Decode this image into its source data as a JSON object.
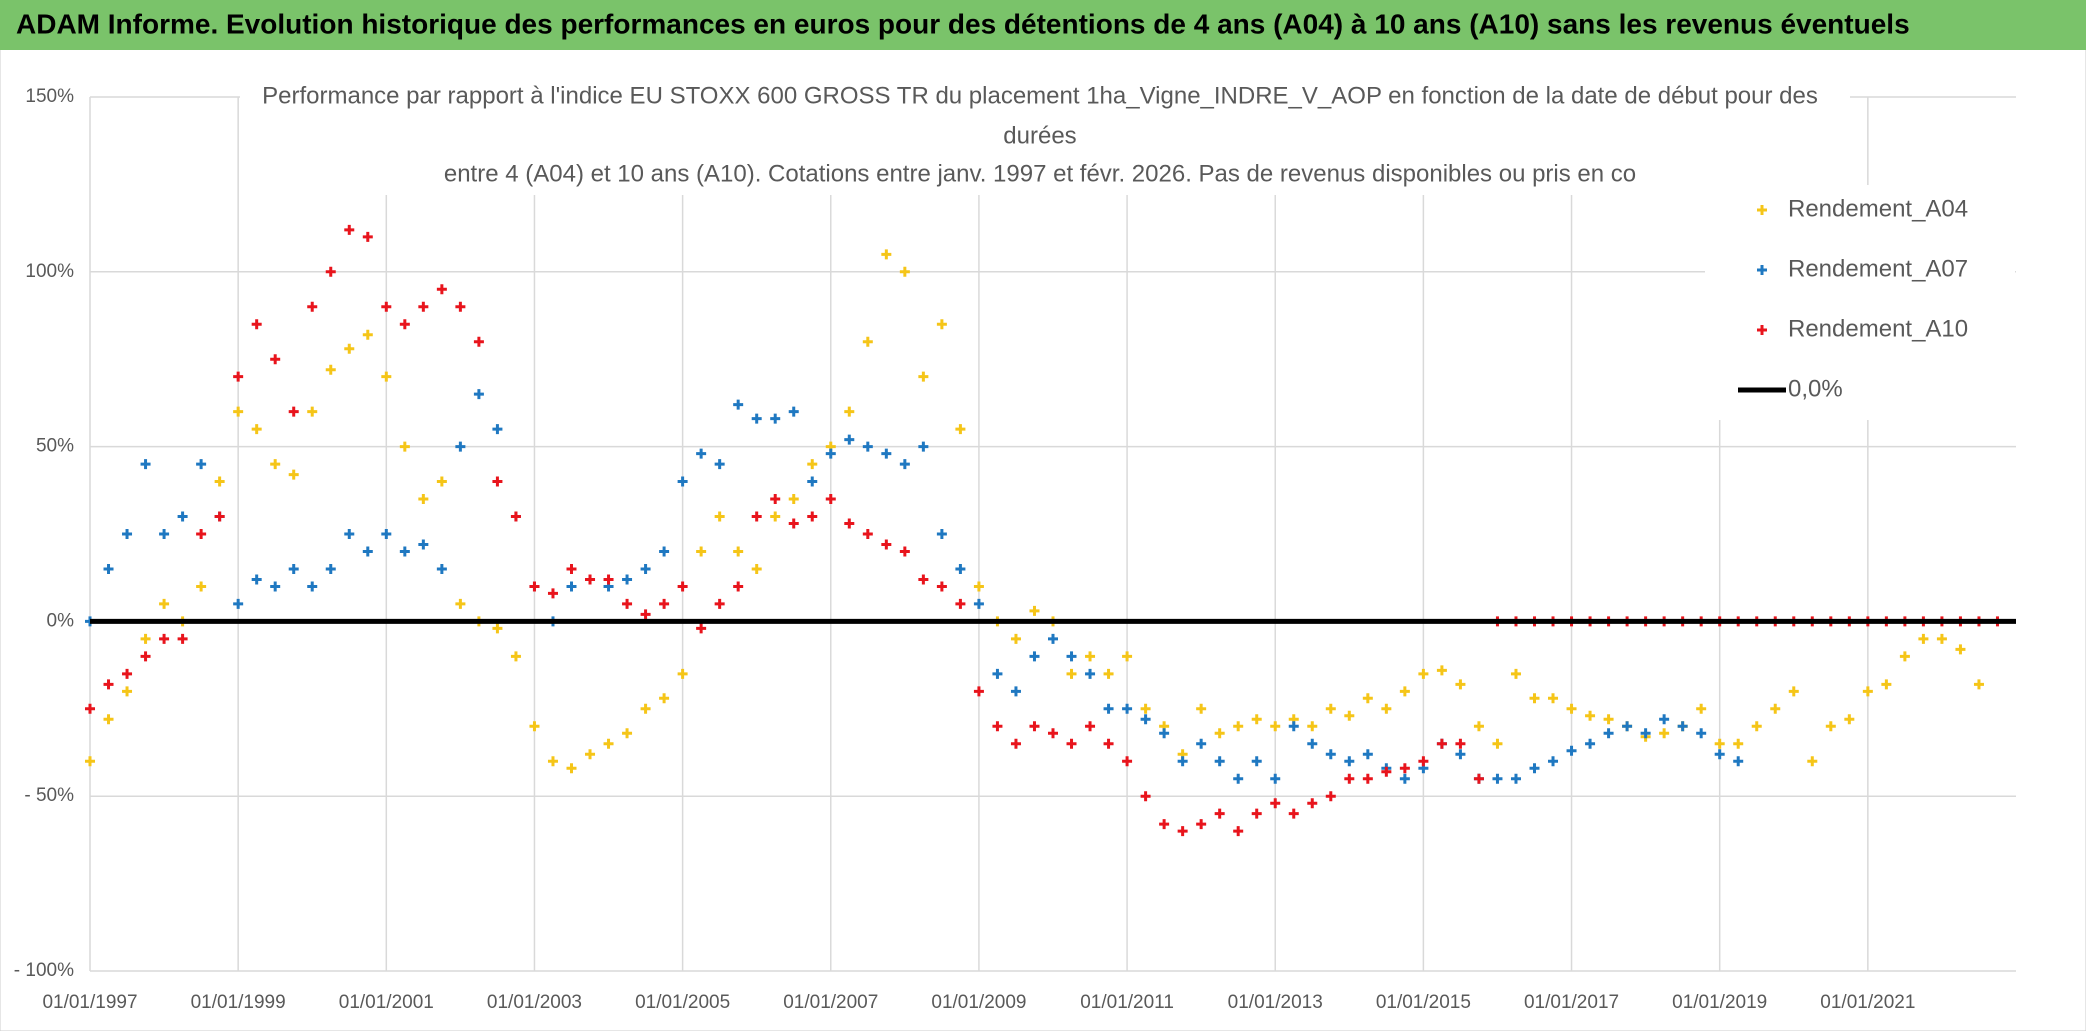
{
  "header": {
    "title": "ADAM Informe. Evolution historique des performances en euros pour des détentions de 4 ans (A04) à 10 ans (A10) sans les revenus éventuels"
  },
  "chart_data": {
    "type": "scatter",
    "title_lines": [
      "Performance par rapport à l'indice EU STOXX 600 GROSS TR  du placement 1ha_Vigne_INDRE_V_AOP en fonction de la date de début pour des",
      "durées",
      "entre 4 (A04) et 10 ans (A10). Cotations entre janv. 1997 et févr. 2026. Pas de revenus disponibles ou pris en co"
    ],
    "x": [
      "1997-01-01",
      "1997-04-01",
      "1997-07-01",
      "1997-10-01",
      "1998-01-01",
      "1998-04-01",
      "1998-07-01",
      "1998-10-01",
      "1999-01-01",
      "1999-04-01",
      "1999-07-01",
      "1999-10-01",
      "2000-01-01",
      "2000-04-01",
      "2000-07-01",
      "2000-10-01",
      "2001-01-01",
      "2001-04-01",
      "2001-07-01",
      "2001-10-01",
      "2002-01-01",
      "2002-04-01",
      "2002-07-01",
      "2002-10-01",
      "2003-01-01",
      "2003-04-01",
      "2003-07-01",
      "2003-10-01",
      "2004-01-01",
      "2004-04-01",
      "2004-07-01",
      "2004-10-01",
      "2005-01-01",
      "2005-04-01",
      "2005-07-01",
      "2005-10-01",
      "2006-01-01",
      "2006-04-01",
      "2006-07-01",
      "2006-10-01",
      "2007-01-01",
      "2007-04-01",
      "2007-07-01",
      "2007-10-01",
      "2008-01-01",
      "2008-04-01",
      "2008-07-01",
      "2008-10-01",
      "2009-01-01",
      "2009-04-01",
      "2009-07-01",
      "2009-10-01",
      "2010-01-01",
      "2010-04-01",
      "2010-07-01",
      "2010-10-01",
      "2011-01-01",
      "2011-04-01",
      "2011-07-01",
      "2011-10-01",
      "2012-01-01",
      "2012-04-01",
      "2012-07-01",
      "2012-10-01",
      "2013-01-01",
      "2013-04-01",
      "2013-07-01",
      "2013-10-01",
      "2014-01-01",
      "2014-04-01",
      "2014-07-01",
      "2014-10-01",
      "2015-01-01",
      "2015-04-01",
      "2015-07-01",
      "2015-10-01",
      "2016-01-01",
      "2016-04-01",
      "2016-07-01",
      "2016-10-01",
      "2017-01-01",
      "2017-04-01",
      "2017-07-01",
      "2017-10-01",
      "2018-01-01",
      "2018-04-01",
      "2018-07-01",
      "2018-10-01",
      "2019-01-01",
      "2019-04-01",
      "2019-07-01",
      "2019-10-01",
      "2020-01-01",
      "2020-04-01",
      "2020-07-01",
      "2020-10-01",
      "2021-01-01",
      "2021-04-01",
      "2021-07-01",
      "2021-10-01",
      "2022-01-01",
      "2022-04-01",
      "2022-07-01",
      "2022-10-01"
    ],
    "series": [
      {
        "name": "Rendement_A04",
        "color": "#f5c518",
        "values": [
          -40,
          -28,
          -20,
          -5,
          5,
          0,
          10,
          40,
          60,
          55,
          45,
          42,
          60,
          72,
          78,
          82,
          70,
          50,
          35,
          40,
          5,
          0,
          -2,
          -10,
          -30,
          -40,
          -42,
          -38,
          -35,
          -32,
          -25,
          -22,
          -15,
          20,
          30,
          20,
          15,
          30,
          35,
          45,
          50,
          60,
          80,
          105,
          100,
          70,
          85,
          55,
          10,
          0,
          -5,
          3,
          0,
          -15,
          -10,
          -15,
          -10,
          -25,
          -30,
          -38,
          -25,
          -32,
          -30,
          -28,
          -30,
          -28,
          -30,
          -25,
          -27,
          -22,
          -25,
          -20,
          -15,
          -14,
          -18,
          -30,
          -35,
          -15,
          -22,
          -22,
          -25,
          -27,
          -28,
          -30,
          -33,
          -32,
          -30,
          -25,
          -35,
          -35,
          -30,
          -25,
          -20,
          -40,
          -30,
          -28,
          -20,
          -18,
          -10,
          -5,
          -5,
          -8,
          -18,
          null
        ]
      },
      {
        "name": "Rendement_A07",
        "color": "#1f78c1",
        "values": [
          0,
          15,
          25,
          45,
          25,
          30,
          45,
          30,
          5,
          12,
          10,
          15,
          10,
          15,
          25,
          20,
          25,
          20,
          22,
          15,
          50,
          65,
          55,
          30,
          10,
          0,
          10,
          12,
          10,
          12,
          15,
          20,
          40,
          48,
          45,
          62,
          58,
          58,
          60,
          40,
          48,
          52,
          50,
          48,
          45,
          50,
          25,
          15,
          5,
          -15,
          -20,
          -10,
          -5,
          -10,
          -15,
          -25,
          -25,
          -28,
          -32,
          -40,
          -35,
          -40,
          -45,
          -40,
          -45,
          -30,
          -35,
          -38,
          -40,
          -38,
          -42,
          -45,
          -42,
          -35,
          -38,
          -45,
          -45,
          -45,
          -42,
          -40,
          -37,
          -35,
          -32,
          -30,
          -32,
          -28,
          -30,
          -32,
          -38,
          -40,
          null,
          null,
          null,
          null,
          null,
          null,
          null,
          null,
          null,
          null,
          null,
          null,
          null,
          null
        ]
      },
      {
        "name": "Rendement_A10",
        "color": "#e8141c",
        "values": [
          -25,
          -18,
          -15,
          -10,
          -5,
          -5,
          25,
          30,
          70,
          85,
          75,
          60,
          90,
          100,
          112,
          110,
          90,
          85,
          90,
          95,
          90,
          80,
          40,
          30,
          10,
          8,
          15,
          12,
          12,
          5,
          2,
          5,
          10,
          -2,
          5,
          10,
          30,
          35,
          28,
          30,
          35,
          28,
          25,
          22,
          20,
          12,
          10,
          5,
          -20,
          -30,
          -35,
          -30,
          -32,
          -35,
          -30,
          -35,
          -40,
          -50,
          -58,
          -60,
          -58,
          -55,
          -60,
          -55,
          -52,
          -55,
          -52,
          -50,
          -45,
          -45,
          -43,
          -42,
          -40,
          -35,
          -35,
          -45,
          0,
          0,
          0,
          0,
          0,
          0,
          0,
          0,
          0,
          0,
          0,
          0,
          0,
          0,
          0,
          0,
          0,
          0,
          0,
          0,
          0,
          0,
          0,
          0,
          0,
          0,
          0,
          0
        ]
      }
    ],
    "reference_line": {
      "name": "0,0%",
      "value": 0,
      "color": "#000000"
    },
    "xlim": [
      "1997-01-01",
      "2023-01-01"
    ],
    "xticks": [
      {
        "value": "1997-01-01",
        "label": "01/01/1997"
      },
      {
        "value": "1999-01-01",
        "label": "01/01/1999"
      },
      {
        "value": "2001-01-01",
        "label": "01/01/2001"
      },
      {
        "value": "2003-01-01",
        "label": "01/01/2003"
      },
      {
        "value": "2005-01-01",
        "label": "01/01/2005"
      },
      {
        "value": "2007-01-01",
        "label": "01/01/2007"
      },
      {
        "value": "2009-01-01",
        "label": "01/01/2009"
      },
      {
        "value": "2011-01-01",
        "label": "01/01/2011"
      },
      {
        "value": "2013-01-01",
        "label": "01/01/2013"
      },
      {
        "value": "2015-01-01",
        "label": "01/01/2015"
      },
      {
        "value": "2017-01-01",
        "label": "01/01/2017"
      },
      {
        "value": "2019-01-01",
        "label": "01/01/2019"
      },
      {
        "value": "2021-01-01",
        "label": "01/01/2021"
      }
    ],
    "ylim": [
      -100,
      150
    ],
    "yticks": [
      {
        "value": 150,
        "label": "150%"
      },
      {
        "value": 100,
        "label": "100%"
      },
      {
        "value": 50,
        "label": "50%"
      },
      {
        "value": 0,
        "label": "0%"
      },
      {
        "value": -50,
        "label": "- 50%"
      },
      {
        "value": -100,
        "label": "- 100%"
      }
    ],
    "grid": true
  }
}
